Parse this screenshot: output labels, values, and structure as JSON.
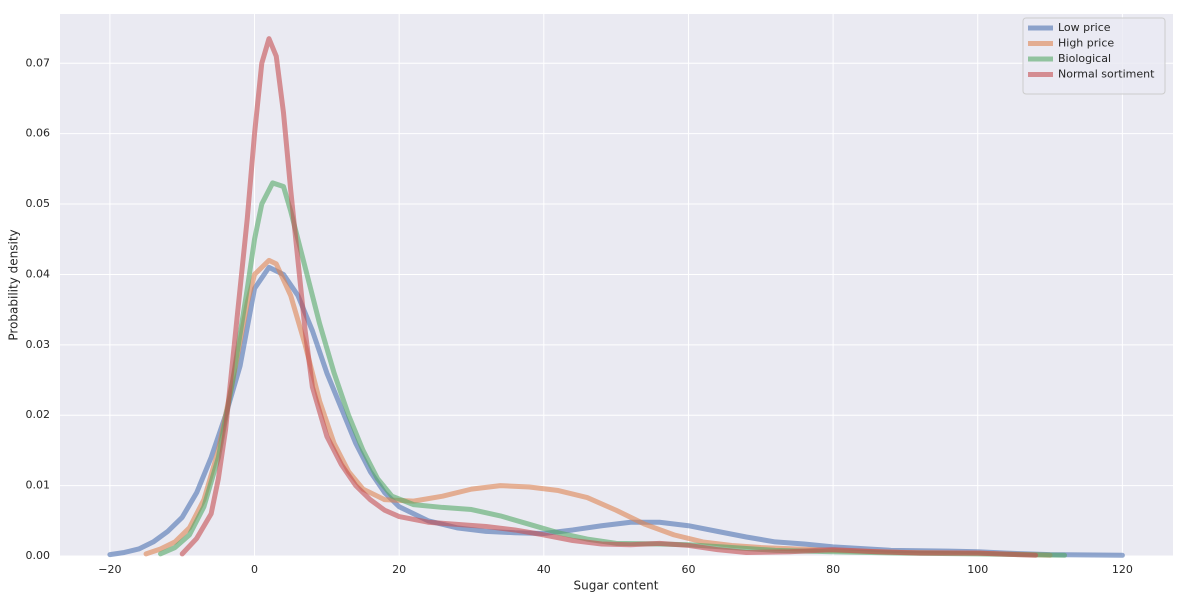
{
  "chart_data": {
    "type": "line",
    "xlabel": "Sugar content",
    "ylabel": "Probability density",
    "xlim": [
      -26.9,
      127
    ],
    "ylim": [
      0,
      0.077
    ],
    "xticks": [
      {
        "value": -20,
        "label": "−20"
      },
      0,
      20,
      40,
      60,
      80,
      100,
      120
    ],
    "yticks": [
      {
        "value": 0,
        "label": "0.00"
      },
      0.01,
      0.02,
      0.03,
      0.04,
      0.05,
      0.06,
      0.07
    ],
    "grid": true,
    "legend": "upper right",
    "line_width": 5,
    "opacity": 0.6,
    "series": [
      {
        "name": "Low price",
        "color": "#4c72b0",
        "x": [
          -20,
          -18,
          -16,
          -14,
          -12,
          -10,
          -8,
          -6,
          -4,
          -2,
          0,
          2,
          4,
          6,
          8,
          10,
          12,
          14,
          16,
          18,
          20,
          24,
          28,
          32,
          36,
          40,
          44,
          48,
          52,
          56,
          60,
          64,
          68,
          72,
          76,
          80,
          88,
          96,
          100,
          104,
          110,
          120
        ],
        "values": [
          0.0002,
          0.0005,
          0.001,
          0.002,
          0.0035,
          0.0055,
          0.009,
          0.014,
          0.02,
          0.027,
          0.038,
          0.041,
          0.04,
          0.037,
          0.032,
          0.026,
          0.021,
          0.016,
          0.012,
          0.009,
          0.007,
          0.005,
          0.004,
          0.0035,
          0.0033,
          0.0032,
          0.0037,
          0.0043,
          0.0048,
          0.0048,
          0.0043,
          0.0035,
          0.0027,
          0.002,
          0.0017,
          0.0013,
          0.0008,
          0.0007,
          0.0006,
          0.0004,
          0.0002,
          0.0001
        ]
      },
      {
        "name": "High price",
        "color": "#dd8452",
        "x": [
          -15,
          -13,
          -11,
          -9,
          -7,
          -5,
          -3,
          -1,
          0,
          2,
          3,
          5,
          7,
          9,
          11,
          13,
          15,
          18,
          22,
          26,
          30,
          34,
          38,
          42,
          46,
          50,
          54,
          58,
          62,
          66,
          70,
          80,
          90,
          100,
          110
        ],
        "values": [
          0.0003,
          0.001,
          0.002,
          0.004,
          0.008,
          0.015,
          0.025,
          0.036,
          0.04,
          0.042,
          0.0415,
          0.037,
          0.03,
          0.022,
          0.016,
          0.012,
          0.0095,
          0.008,
          0.0078,
          0.0085,
          0.0095,
          0.01,
          0.0098,
          0.0093,
          0.0083,
          0.0065,
          0.0045,
          0.003,
          0.002,
          0.0015,
          0.0012,
          0.0008,
          0.0005,
          0.0004,
          0.0001
        ]
      },
      {
        "name": "Biological",
        "color": "#55a868",
        "x": [
          -13,
          -11,
          -9,
          -7,
          -5,
          -3,
          -1,
          0,
          1,
          2.5,
          4,
          5,
          7,
          9,
          11,
          13,
          15,
          17,
          19,
          22,
          26,
          30,
          34,
          38,
          42,
          46,
          50,
          56,
          60,
          66,
          72,
          80,
          90,
          100,
          112
        ],
        "values": [
          0.0003,
          0.0012,
          0.003,
          0.007,
          0.014,
          0.025,
          0.038,
          0.045,
          0.05,
          0.053,
          0.0525,
          0.049,
          0.041,
          0.033,
          0.026,
          0.02,
          0.015,
          0.011,
          0.0085,
          0.0073,
          0.0069,
          0.0066,
          0.0057,
          0.0045,
          0.0033,
          0.0024,
          0.0018,
          0.0017,
          0.0016,
          0.0012,
          0.0008,
          0.0006,
          0.0004,
          0.0003,
          0.0001
        ]
      },
      {
        "name": "Normal sortiment",
        "color": "#c44e52",
        "x": [
          -10,
          -8,
          -6,
          -5,
          -4,
          -3,
          -2,
          -1,
          0,
          1,
          2,
          3,
          4,
          5,
          6,
          7,
          8,
          10,
          12,
          14,
          16,
          18,
          20,
          24,
          28,
          32,
          36,
          40,
          44,
          48,
          52,
          56,
          60,
          64,
          68,
          74,
          80,
          86,
          92,
          100,
          108
        ],
        "values": [
          0.0003,
          0.0025,
          0.006,
          0.011,
          0.018,
          0.028,
          0.038,
          0.048,
          0.06,
          0.07,
          0.0735,
          0.071,
          0.063,
          0.052,
          0.042,
          0.032,
          0.024,
          0.017,
          0.013,
          0.01,
          0.008,
          0.0065,
          0.0056,
          0.0048,
          0.0045,
          0.0042,
          0.0037,
          0.003,
          0.0022,
          0.0017,
          0.0016,
          0.0018,
          0.0015,
          0.0009,
          0.0005,
          0.0006,
          0.0009,
          0.0006,
          0.0004,
          0.0004,
          0.0001
        ]
      }
    ]
  }
}
